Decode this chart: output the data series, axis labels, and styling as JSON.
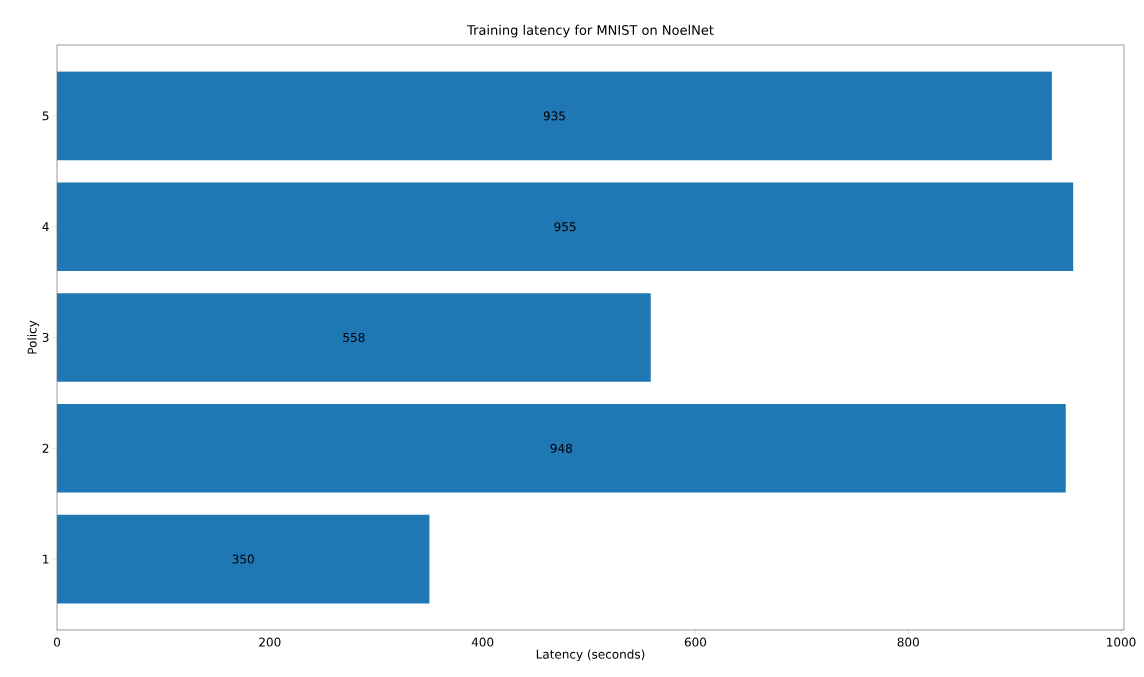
{
  "chart_data": {
    "type": "bar",
    "orientation": "horizontal",
    "title": "Training latency for MNIST on NoelNet",
    "xlabel": "Latency (seconds)",
    "ylabel": "Policy",
    "categories": [
      "5",
      "4",
      "3",
      "2",
      "1"
    ],
    "values": [
      935,
      955,
      558,
      948,
      350
    ],
    "color": "#1f77b4",
    "data_labels": true,
    "xlim": [
      0,
      1002.75
    ],
    "xticks": [
      0,
      200,
      400,
      600,
      800,
      1000
    ]
  }
}
